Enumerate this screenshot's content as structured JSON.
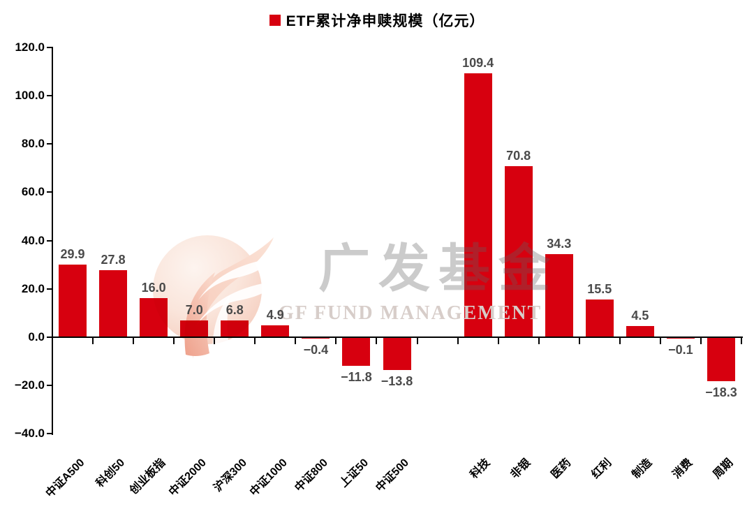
{
  "legend": {
    "marker_color": "#d7000f"
  },
  "watermark": {
    "cn": "广发基金",
    "en": "GF FUND MANAGEMENT"
  },
  "chart_data": {
    "type": "bar",
    "title": "ETF累计净申赎规模（亿元）",
    "categories": [
      "中证A500",
      "科创50",
      "创业板指",
      "中证2000",
      "沪深300",
      "中证1000",
      "中证800",
      "上证50",
      "中证500",
      "科技",
      "非银",
      "医药",
      "红利",
      "制造",
      "消费",
      "周期"
    ],
    "values": [
      29.9,
      27.8,
      16.0,
      7.0,
      6.8,
      4.9,
      -0.4,
      -11.8,
      -13.8,
      109.4,
      70.8,
      34.3,
      15.5,
      4.5,
      -0.1,
      -18.3
    ],
    "gap_after_index": 8,
    "ylim": [
      -40,
      120
    ],
    "yticks": [
      120,
      100,
      80,
      60,
      40,
      20,
      0,
      -20,
      -40
    ],
    "ytick_format": "one-decimal",
    "bar_color": "#d7000f",
    "value_label_color": "#4a4a4a",
    "axis_color": "#000000",
    "grid": false,
    "legend_position": "top-center",
    "xlabel": "",
    "ylabel": ""
  }
}
